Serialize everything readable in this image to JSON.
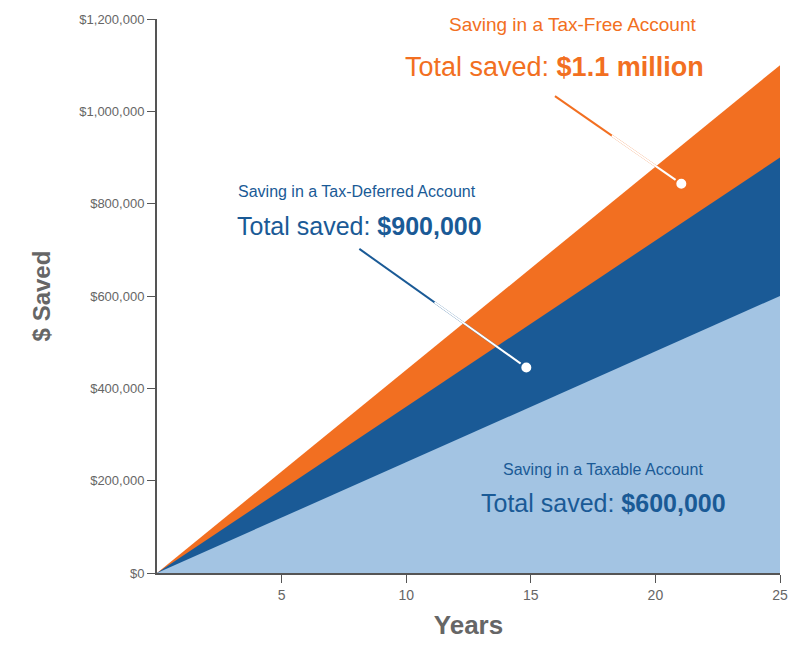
{
  "chart_data": {
    "type": "area",
    "stacked": false,
    "grid": false,
    "x": [
      0,
      25
    ],
    "xlim": [
      0,
      25
    ],
    "xticks": [
      5,
      10,
      15,
      20,
      25
    ],
    "ylim": [
      0,
      1200000
    ],
    "yticks": [
      {
        "value": 0,
        "label": "$0"
      },
      {
        "value": 200000,
        "label": "$200,000"
      },
      {
        "value": 400000,
        "label": "$400,000"
      },
      {
        "value": 600000,
        "label": "$600,000"
      },
      {
        "value": 800000,
        "label": "$800,000"
      },
      {
        "value": 1000000,
        "label": "$1,000,000"
      },
      {
        "value": 1200000,
        "label": "$1,200,000"
      }
    ],
    "x_label": "Years",
    "y_label": "$ Saved",
    "total_label": "Total saved:",
    "series": [
      {
        "name": "Saving in a Tax-Free Account",
        "color": "#f26f21",
        "values": [
          0,
          1100000
        ],
        "value_labels": [
          null,
          "$1.1 million"
        ]
      },
      {
        "name": "Saving in a Tax-Deferred Account",
        "color": "#1a5a96",
        "values": [
          0,
          900000
        ],
        "value_labels": [
          null,
          "$900,000"
        ]
      },
      {
        "name": "Saving in a Taxable Account",
        "color": "#a3c4e3",
        "values": [
          0,
          600000
        ],
        "value_labels": [
          null,
          "$600,000"
        ]
      }
    ]
  }
}
